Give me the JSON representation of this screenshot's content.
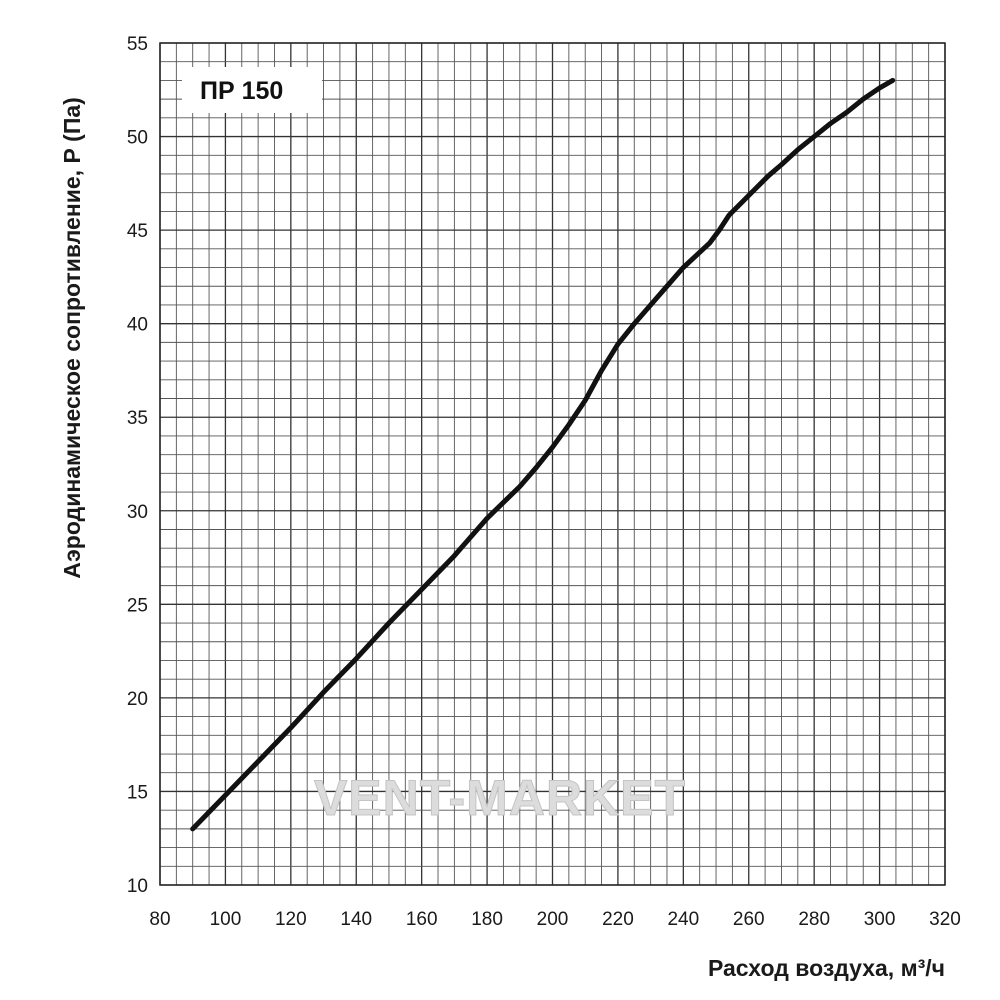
{
  "watermark": "VENT-MARKET",
  "chart_data": {
    "type": "line",
    "legend": "ПР 150",
    "legend_position": "top-left",
    "xlabel": "Расход воздуха,  м³/ч",
    "ylabel": "Аэродинамическое сопротивление, Р (Па)",
    "xlim": [
      80,
      320
    ],
    "ylim": [
      10,
      55
    ],
    "xticks": [
      80,
      100,
      120,
      140,
      160,
      180,
      200,
      220,
      240,
      260,
      280,
      300,
      320
    ],
    "yticks": [
      10,
      15,
      20,
      25,
      30,
      35,
      40,
      45,
      50,
      55
    ],
    "grid": true,
    "grid_x_step": 5,
    "grid_y_step": 1,
    "line_color": "#111111",
    "series": [
      {
        "x": [
          90,
          100,
          110,
          120,
          130,
          140,
          150,
          160,
          170,
          175,
          180,
          190,
          195,
          200,
          205,
          210,
          215,
          220,
          225,
          230,
          235,
          240,
          248,
          251,
          254,
          258,
          262,
          266,
          270,
          275,
          280,
          285,
          290,
          295,
          300,
          304
        ],
        "y": [
          13.0,
          14.8,
          16.6,
          18.4,
          20.3,
          22.1,
          24.0,
          25.8,
          27.6,
          28.6,
          29.6,
          31.3,
          32.3,
          33.4,
          34.6,
          35.9,
          37.5,
          38.9,
          40.0,
          41.0,
          42.0,
          43.0,
          44.3,
          45.0,
          45.8,
          46.5,
          47.2,
          47.9,
          48.5,
          49.3,
          50.0,
          50.7,
          51.3,
          52.0,
          52.6,
          53.0
        ]
      }
    ]
  }
}
